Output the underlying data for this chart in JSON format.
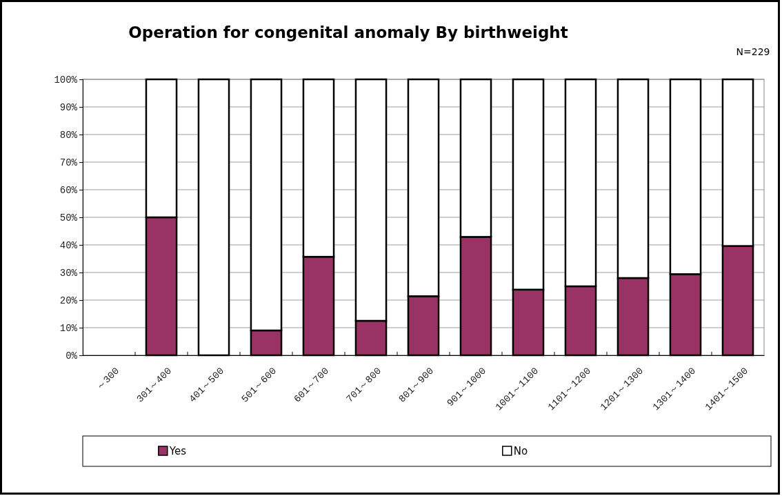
{
  "chart_data": {
    "type": "bar",
    "stacked": true,
    "title": "Operation for congenital anomaly By birthweight",
    "annotations": [
      "N=229"
    ],
    "categories": [
      "～300",
      "301～400",
      "401～500",
      "501～600",
      "601～700",
      "701～800",
      "801～900",
      "901～1000",
      "1001～1100",
      "1101～1200",
      "1201～1300",
      "1301～1400",
      "1401～1500"
    ],
    "series": [
      {
        "name": "Yes",
        "color": "#993366",
        "values": [
          null,
          50,
          0,
          9,
          35.7,
          12.5,
          21.4,
          42.9,
          23.8,
          25,
          28,
          29.4,
          39.6
        ]
      },
      {
        "name": "No",
        "color": "#ffffff",
        "values": [
          null,
          50,
          100,
          91,
          64.3,
          87.5,
          78.6,
          57.1,
          76.2,
          75,
          72,
          70.6,
          60.4
        ]
      }
    ],
    "ylim": [
      0,
      100
    ],
    "yticks": [
      {
        "value": 0,
        "label": "0%"
      },
      {
        "value": 10,
        "label": "10%"
      },
      {
        "value": 20,
        "label": "20%"
      },
      {
        "value": 30,
        "label": "30%"
      },
      {
        "value": 40,
        "label": "40%"
      },
      {
        "value": 50,
        "label": "50%"
      },
      {
        "value": 60,
        "label": "60%"
      },
      {
        "value": 70,
        "label": "70%"
      },
      {
        "value": 80,
        "label": "80%"
      },
      {
        "value": 90,
        "label": "90%"
      },
      {
        "value": 100,
        "label": "100%"
      }
    ],
    "grid": "y",
    "legend": "bottom"
  }
}
